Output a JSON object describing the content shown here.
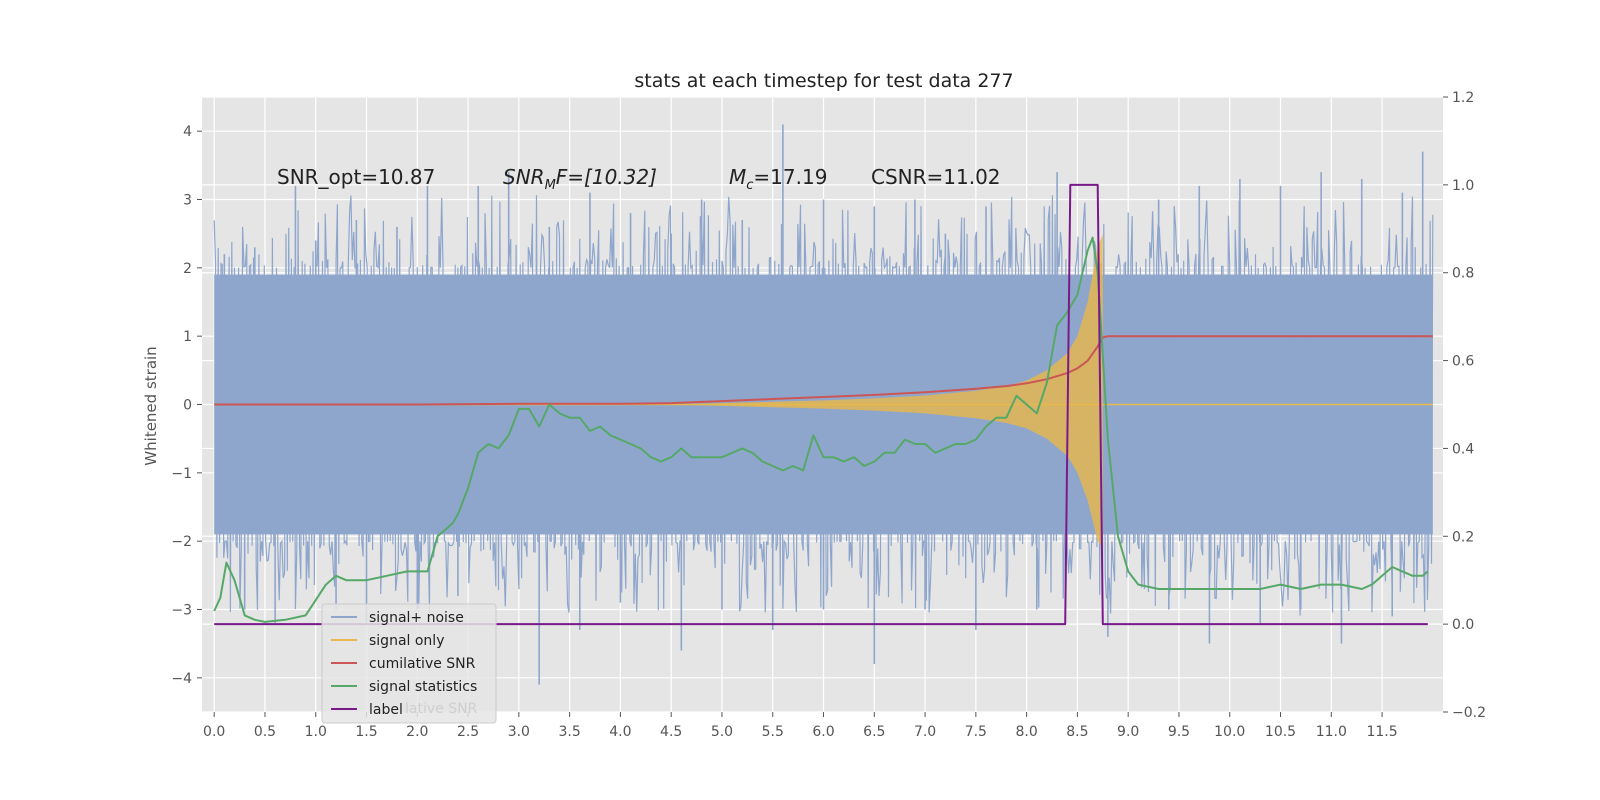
{
  "chart_data": {
    "type": "line",
    "title": "stats at each timestep for test data 277",
    "ylabel": "Whitened strain",
    "xlim": [
      -0.12,
      12.1
    ],
    "ylim": [
      -4.5,
      4.5
    ],
    "y2lim": [
      -0.2,
      1.2
    ],
    "x_ticks": [
      0.0,
      0.5,
      1.0,
      1.5,
      2.0,
      2.5,
      3.0,
      3.5,
      4.0,
      4.5,
      5.0,
      5.5,
      6.0,
      6.5,
      7.0,
      7.5,
      8.0,
      8.5,
      9.0,
      9.5,
      10.0,
      10.5,
      11.0,
      11.5
    ],
    "x_tick_labels": [
      "0.0",
      "0.5",
      "1.0",
      "1.5",
      "2.0",
      "2.5",
      "3.0",
      "3.5",
      "4.0",
      "4.5",
      "5.0",
      "5.5",
      "6.0",
      "6.5",
      "7.0",
      "7.5",
      "8.0",
      "8.5",
      "9.0",
      "9.5",
      "10.0",
      "10.5",
      "11.0",
      "11.5"
    ],
    "y_ticks": [
      -4,
      -3,
      -2,
      -1,
      0,
      1,
      2,
      3,
      4
    ],
    "y_tick_labels": [
      "−4",
      "−3",
      "−2",
      "−1",
      "0",
      "1",
      "2",
      "3",
      "4"
    ],
    "y2_ticks": [
      -0.2,
      0.0,
      0.2,
      0.4,
      0.6,
      0.8,
      1.0,
      1.2
    ],
    "y2_tick_labels": [
      "−0.2",
      "0.0",
      "0.2",
      "0.4",
      "0.6",
      "0.8",
      "1.0",
      "1.2"
    ],
    "grid": true,
    "legend_position": "lower-left",
    "annotations": {
      "snr_opt": "SNR_opt=10.87",
      "snr_mf_main": "SNR",
      "snr_mf_sub": "M",
      "snr_mf_rest": "F=[10.32]",
      "mc_main": "M",
      "mc_sub": "c",
      "mc_rest": "=17.19",
      "csnr": "CSNR=11.02"
    },
    "series": [
      {
        "name": "signal+ noise",
        "axis": "left",
        "color": "#8fa6cc",
        "noise_band": [
          -1.9,
          1.9
        ],
        "x_range": [
          0.0,
          12.0
        ],
        "peak_spikes": [
          {
            "x": 0.1,
            "y": 2.2
          },
          {
            "x": 0.4,
            "y": 2.3
          },
          {
            "x": 0.8,
            "y": 3.2
          },
          {
            "x": 1.0,
            "y": 2.4
          },
          {
            "x": 1.4,
            "y": 2.7
          },
          {
            "x": 1.8,
            "y": 2.6
          },
          {
            "x": 2.1,
            "y": 3.2
          },
          {
            "x": 2.6,
            "y": 3.2
          },
          {
            "x": 2.9,
            "y": 3.4
          },
          {
            "x": 3.3,
            "y": 2.6
          },
          {
            "x": 3.7,
            "y": 3.1
          },
          {
            "x": 4.1,
            "y": 2.8
          },
          {
            "x": 4.5,
            "y": 2.5
          },
          {
            "x": 4.8,
            "y": 3.0
          },
          {
            "x": 5.2,
            "y": 2.7
          },
          {
            "x": 5.6,
            "y": 4.1
          },
          {
            "x": 6.0,
            "y": 3.0
          },
          {
            "x": 6.5,
            "y": 2.9
          },
          {
            "x": 6.9,
            "y": 3.0
          },
          {
            "x": 7.2,
            "y": 2.5
          },
          {
            "x": 7.6,
            "y": 2.9
          },
          {
            "x": 8.3,
            "y": 3.4
          },
          {
            "x": 9.3,
            "y": 3.0
          },
          {
            "x": 9.7,
            "y": 3.2
          },
          {
            "x": 10.1,
            "y": 3.3
          },
          {
            "x": 10.5,
            "y": 3.2
          },
          {
            "x": 10.9,
            "y": 3.4
          },
          {
            "x": 11.3,
            "y": 3.3
          },
          {
            "x": 11.7,
            "y": 3.1
          },
          {
            "x": 11.9,
            "y": 3.7
          }
        ],
        "trough_spikes": [
          {
            "x": 0.3,
            "y": -3.0
          },
          {
            "x": 0.6,
            "y": -3.2
          },
          {
            "x": 1.2,
            "y": -3.0
          },
          {
            "x": 1.5,
            "y": -3.2
          },
          {
            "x": 2.0,
            "y": -3.0
          },
          {
            "x": 2.4,
            "y": -2.8
          },
          {
            "x": 3.2,
            "y": -4.1
          },
          {
            "x": 3.6,
            "y": -3.3
          },
          {
            "x": 4.0,
            "y": -2.9
          },
          {
            "x": 4.6,
            "y": -3.6
          },
          {
            "x": 5.0,
            "y": -3.0
          },
          {
            "x": 5.5,
            "y": -3.3
          },
          {
            "x": 6.0,
            "y": -3.0
          },
          {
            "x": 6.5,
            "y": -3.8
          },
          {
            "x": 7.0,
            "y": -3.0
          },
          {
            "x": 7.5,
            "y": -3.3
          },
          {
            "x": 8.1,
            "y": -3.0
          },
          {
            "x": 8.8,
            "y": -3.4
          },
          {
            "x": 9.4,
            "y": -3.0
          },
          {
            "x": 9.8,
            "y": -3.5
          },
          {
            "x": 10.3,
            "y": -3.2
          },
          {
            "x": 10.7,
            "y": -3.0
          },
          {
            "x": 11.1,
            "y": -3.5
          },
          {
            "x": 11.6,
            "y": -3.1
          }
        ]
      },
      {
        "name": "signal only",
        "axis": "left",
        "color": "#e8b84a",
        "envelope": {
          "x": [
            4.5,
            5.0,
            5.5,
            6.0,
            6.5,
            7.0,
            7.5,
            7.8,
            8.0,
            8.2,
            8.4,
            8.5,
            8.6,
            8.7,
            8.75
          ],
          "upper": [
            0.0,
            0.02,
            0.04,
            0.06,
            0.09,
            0.13,
            0.2,
            0.27,
            0.35,
            0.5,
            0.75,
            1.0,
            1.5,
            2.3,
            2.5
          ],
          "lower": [
            0.0,
            -0.02,
            -0.04,
            -0.06,
            -0.09,
            -0.13,
            -0.2,
            -0.27,
            -0.35,
            -0.5,
            -0.75,
            -1.0,
            -1.4,
            -2.0,
            -2.1
          ]
        },
        "x_range": [
          0.0,
          12.0
        ]
      },
      {
        "name": "cumilative SNR",
        "axis": "left",
        "color": "#cc5555",
        "x": [
          0.0,
          1.0,
          2.0,
          3.0,
          4.0,
          4.5,
          5.0,
          5.5,
          6.0,
          6.5,
          7.0,
          7.5,
          7.8,
          8.0,
          8.2,
          8.4,
          8.5,
          8.6,
          8.7,
          8.75,
          8.8,
          12.0
        ],
        "y": [
          0.0,
          0.0,
          0.0,
          0.01,
          0.01,
          0.02,
          0.05,
          0.08,
          0.11,
          0.14,
          0.18,
          0.23,
          0.27,
          0.31,
          0.37,
          0.46,
          0.53,
          0.64,
          0.85,
          0.98,
          1.0,
          1.0
        ]
      },
      {
        "name": "signal statistics",
        "axis": "right",
        "color": "#55a868",
        "x": [
          0.0,
          0.06,
          0.12,
          0.2,
          0.3,
          0.4,
          0.5,
          0.7,
          0.9,
          1.1,
          1.2,
          1.3,
          1.5,
          1.7,
          1.9,
          2.0,
          2.1,
          2.2,
          2.3,
          2.35,
          2.4,
          2.5,
          2.6,
          2.7,
          2.8,
          2.9,
          3.0,
          3.1,
          3.2,
          3.3,
          3.4,
          3.5,
          3.6,
          3.7,
          3.8,
          3.9,
          4.0,
          4.1,
          4.2,
          4.3,
          4.4,
          4.5,
          4.6,
          4.7,
          4.8,
          4.9,
          5.0,
          5.1,
          5.2,
          5.3,
          5.4,
          5.5,
          5.6,
          5.7,
          5.8,
          5.9,
          6.0,
          6.1,
          6.2,
          6.3,
          6.4,
          6.5,
          6.6,
          6.7,
          6.8,
          6.9,
          7.0,
          7.1,
          7.2,
          7.3,
          7.4,
          7.5,
          7.6,
          7.7,
          7.8,
          7.9,
          8.0,
          8.1,
          8.2,
          8.3,
          8.4,
          8.5,
          8.6,
          8.65,
          8.7,
          8.8,
          8.9,
          9.0,
          9.1,
          9.3,
          9.5,
          9.7,
          9.9,
          10.1,
          10.3,
          10.5,
          10.7,
          10.9,
          11.1,
          11.3,
          11.4,
          11.5,
          11.6,
          11.7,
          11.8,
          11.9,
          11.95
        ],
        "y": [
          0.03,
          0.06,
          0.14,
          0.1,
          0.02,
          0.01,
          0.005,
          0.01,
          0.02,
          0.09,
          0.11,
          0.1,
          0.1,
          0.11,
          0.12,
          0.12,
          0.12,
          0.2,
          0.22,
          0.23,
          0.25,
          0.31,
          0.39,
          0.41,
          0.4,
          0.43,
          0.49,
          0.49,
          0.45,
          0.5,
          0.48,
          0.47,
          0.47,
          0.44,
          0.45,
          0.43,
          0.42,
          0.41,
          0.4,
          0.38,
          0.37,
          0.38,
          0.4,
          0.38,
          0.38,
          0.38,
          0.38,
          0.39,
          0.4,
          0.39,
          0.37,
          0.36,
          0.35,
          0.36,
          0.35,
          0.43,
          0.38,
          0.38,
          0.37,
          0.38,
          0.36,
          0.37,
          0.39,
          0.39,
          0.42,
          0.41,
          0.41,
          0.39,
          0.4,
          0.41,
          0.41,
          0.42,
          0.45,
          0.47,
          0.47,
          0.52,
          0.5,
          0.48,
          0.55,
          0.68,
          0.71,
          0.75,
          0.85,
          0.88,
          0.8,
          0.42,
          0.2,
          0.12,
          0.09,
          0.08,
          0.08,
          0.08,
          0.08,
          0.08,
          0.08,
          0.09,
          0.08,
          0.09,
          0.09,
          0.08,
          0.09,
          0.11,
          0.13,
          0.12,
          0.11,
          0.11,
          0.12
        ]
      },
      {
        "name": "label",
        "axis": "right",
        "color": "#7a1a8a",
        "x": [
          0.0,
          8.38,
          8.43,
          8.7,
          8.75,
          11.95
        ],
        "y": [
          0.0,
          0.0,
          1.0,
          1.0,
          0.0,
          0.0
        ]
      }
    ],
    "legend": [
      "signal+ noise",
      "signal only",
      "cumilative SNR",
      "signal statistics",
      "label"
    ],
    "legend_overlapped_text": "lative SNR"
  }
}
